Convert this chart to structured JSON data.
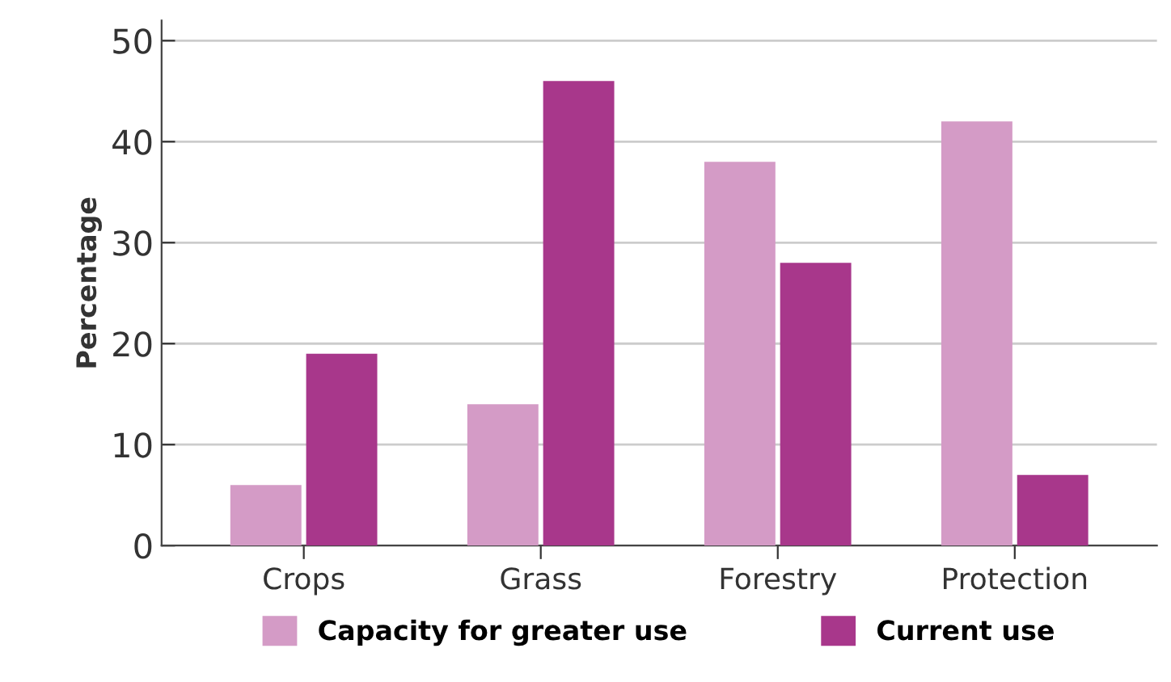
{
  "chart_data": {
    "type": "bar",
    "ylabel": "Percentage",
    "categories": [
      "Crops",
      "Grass",
      "Forestry",
      "Protection"
    ],
    "series": [
      {
        "name": "Capacity for greater use",
        "color": "#d49bc6",
        "values": [
          6,
          14,
          38,
          42
        ]
      },
      {
        "name": "Current use",
        "color": "#a8378b",
        "values": [
          19,
          46,
          28,
          7
        ]
      }
    ],
    "ylim": [
      0,
      52
    ],
    "yticks": [
      0,
      10,
      20,
      30,
      40,
      50
    ],
    "grid": "y",
    "legend": "bottom"
  }
}
